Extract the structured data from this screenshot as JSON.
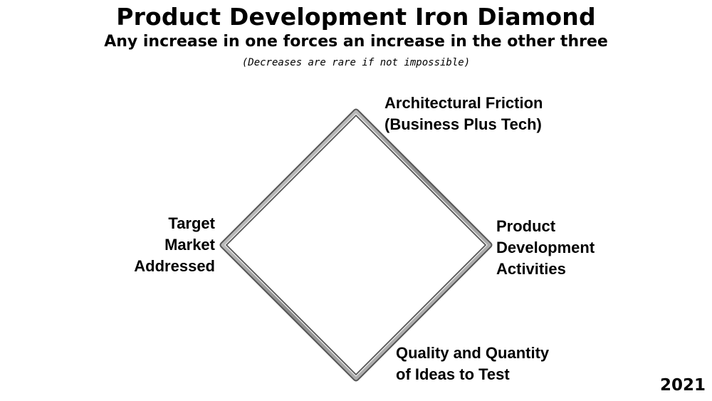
{
  "header": {
    "title": "Product Development Iron Diamond",
    "subtitle": "Any increase in one forces an increase in the other three",
    "note": "(Decreases are rare if not impossible)"
  },
  "diamond": {
    "top": [
      "Architectural Friction",
      "(Business Plus Tech)"
    ],
    "right": [
      "Product",
      "Development",
      "Activities"
    ],
    "bottom": [
      "Quality and Quantity",
      "of Ideas to Test"
    ],
    "left": [
      "Target",
      "Market",
      "Addressed"
    ]
  },
  "footer": {
    "year": "2021"
  }
}
